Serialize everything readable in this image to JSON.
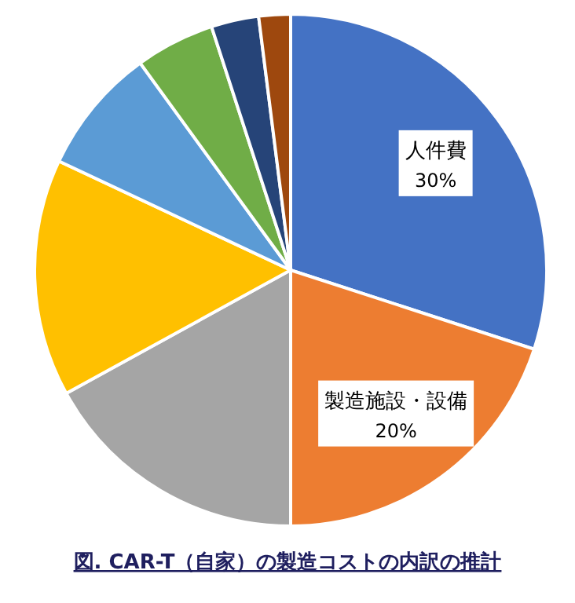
{
  "chart_data": {
    "type": "pie",
    "title": "図. CAR-T（自家）の製造コストの内訳の推計",
    "categories": [
      "人件費",
      "製造施設・設備",
      null,
      null,
      null,
      null,
      null,
      null
    ],
    "values": [
      30,
      20,
      17,
      15,
      8,
      5,
      3,
      2
    ],
    "colors": [
      "#4472c4",
      "#ed7d31",
      "#a5a5a5",
      "#ffc000",
      "#5b9bd5",
      "#70ad47",
      "#264478",
      "#9e480e"
    ],
    "value_labels": [
      "30%",
      "20%",
      null,
      null,
      null,
      null,
      null,
      null
    ],
    "legend": false
  }
}
